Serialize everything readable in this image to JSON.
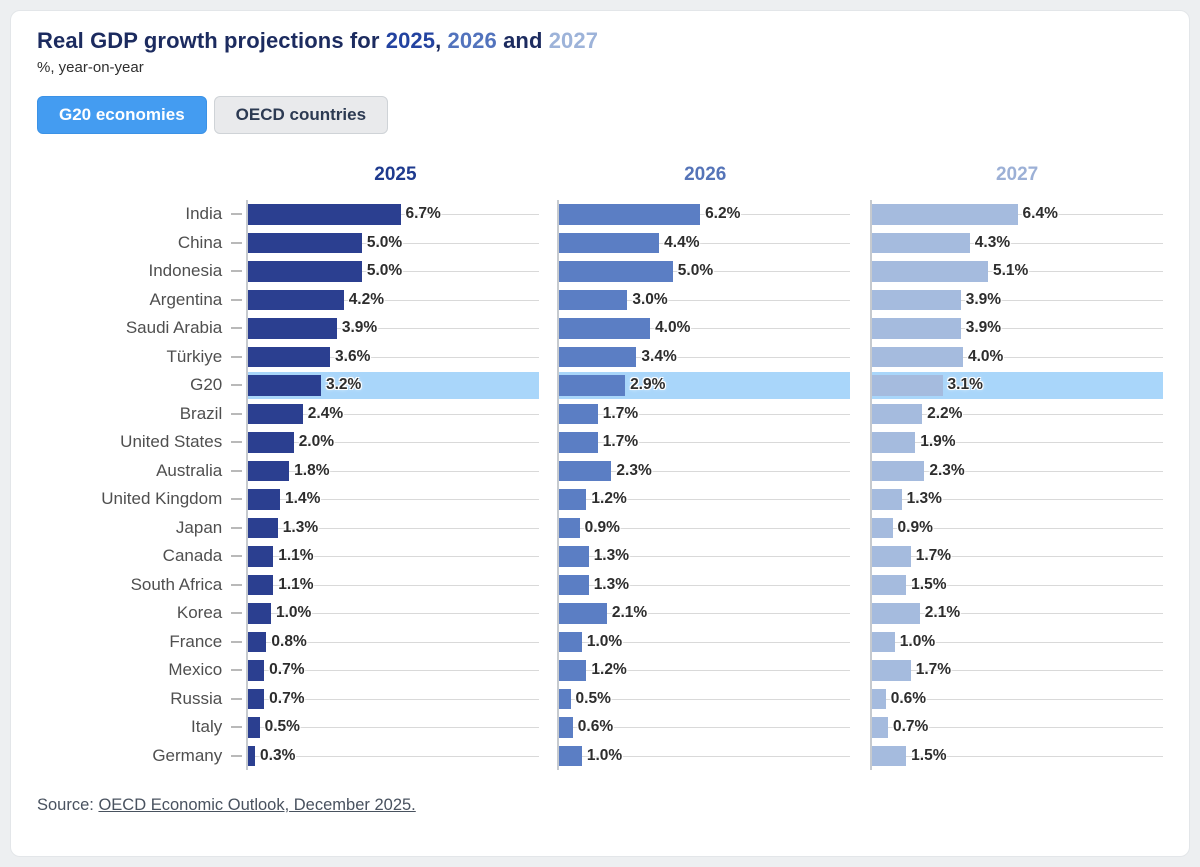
{
  "page": {
    "background": "#edeff1",
    "card_background": "#ffffff"
  },
  "header": {
    "title_parts": [
      {
        "text": "Real GDP growth projections for ",
        "color": "#1c2b5f"
      },
      {
        "text": "2025",
        "color": "#2343a0"
      },
      {
        "text": ", ",
        "color": "#1c2b5f"
      },
      {
        "text": "2026",
        "color": "#5273bd"
      },
      {
        "text": " and ",
        "color": "#1c2b5f"
      },
      {
        "text": "2027",
        "color": "#9db3d9"
      }
    ],
    "subtitle": "%, year-on-year",
    "subtitle_color": "#2f2f2f"
  },
  "toggle": {
    "options": [
      {
        "label": "G20 economies",
        "active": true
      },
      {
        "label": "OECD countries",
        "active": false
      }
    ],
    "active_bg": "#449cf1",
    "inactive_bg": "#e9eaec"
  },
  "chart_data": {
    "type": "bar",
    "orientation": "horizontal",
    "value_suffix": "%",
    "axis_max": 12.8,
    "grid": true,
    "highlight_category": "G20",
    "highlight_color": "#a9d6fa",
    "categories": [
      "India",
      "China",
      "Indonesia",
      "Argentina",
      "Saudi Arabia",
      "Türkiye",
      "G20",
      "Brazil",
      "United States",
      "Australia",
      "United Kingdom",
      "Japan",
      "Canada",
      "South Africa",
      "Korea",
      "France",
      "Mexico",
      "Russia",
      "Italy",
      "Germany"
    ],
    "series": [
      {
        "name": "2025",
        "color": "#2b3f90",
        "header_color": "#1e3a8e",
        "values": [
          6.7,
          5.0,
          5.0,
          4.2,
          3.9,
          3.6,
          3.2,
          2.4,
          2.0,
          1.8,
          1.4,
          1.3,
          1.1,
          1.1,
          1.0,
          0.8,
          0.7,
          0.7,
          0.5,
          0.3
        ]
      },
      {
        "name": "2026",
        "color": "#5b7ec4",
        "header_color": "#5574b8",
        "values": [
          6.2,
          4.4,
          5.0,
          3.0,
          4.0,
          3.4,
          2.9,
          1.7,
          1.7,
          2.3,
          1.2,
          0.9,
          1.3,
          1.3,
          2.1,
          1.0,
          1.2,
          0.5,
          0.6,
          1.0
        ]
      },
      {
        "name": "2027",
        "color": "#a5bbde",
        "header_color": "#9cb0d6",
        "values": [
          6.4,
          4.3,
          5.1,
          3.9,
          3.9,
          4.0,
          3.1,
          2.2,
          1.9,
          2.3,
          1.3,
          0.9,
          1.7,
          1.5,
          2.1,
          1.0,
          1.7,
          0.6,
          0.7,
          1.5
        ]
      }
    ]
  },
  "footer": {
    "source_prefix": "Source: ",
    "source_link": "OECD Economic Outlook, December 2025."
  }
}
